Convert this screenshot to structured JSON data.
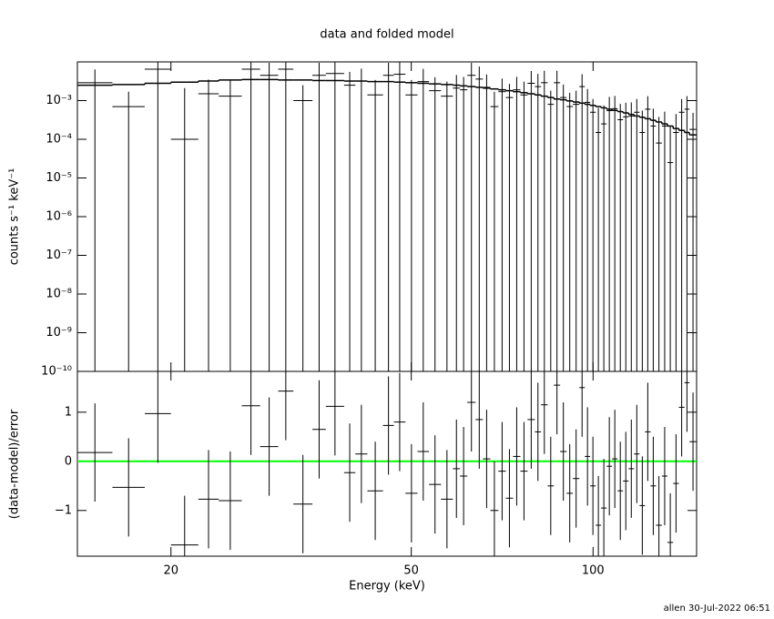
{
  "footer": "allen 30-Jul-2022 06:51",
  "chart_data": [
    {
      "type": "errorbar_step",
      "title": "data and folded model",
      "ylabel": "counts s⁻¹ keV⁻¹",
      "xlog": true,
      "ylog": true,
      "xlim": [
        14,
        148.4
      ],
      "ylim": [
        1e-10,
        0.01
      ],
      "yticks": [
        {
          "value": 1e-10,
          "label": "10⁻¹⁰"
        },
        {
          "value": 1e-09,
          "label": "10⁻⁹"
        },
        {
          "value": 1e-08,
          "label": "10⁻⁸"
        },
        {
          "value": 1e-07,
          "label": "10⁻⁷"
        },
        {
          "value": 1e-06,
          "label": "10⁻⁶"
        },
        {
          "value": 1e-05,
          "label": "10⁻⁵"
        },
        {
          "value": 0.0001,
          "label": "10⁻⁴"
        },
        {
          "value": 0.001,
          "label": "10⁻³"
        }
      ],
      "bins": [
        14,
        16,
        18.1,
        20,
        22.2,
        24,
        26.2,
        28.1,
        30.1,
        31.9,
        34.3,
        36.1,
        38.7,
        40.4,
        42.3,
        44.9,
        46.8,
        48.9,
        51.2,
        53.5,
        56,
        58.6,
        60.2,
        61.9,
        63.9,
        65.7,
        67.6,
        69.7,
        71.7,
        73.7,
        75.8,
        77.9,
        80.1,
        82,
        84.1,
        86.1,
        88.2,
        90.4,
        92.6,
        94.9,
        96.9,
        98.9,
        101,
        103.1,
        105.3,
        107.5,
        109.8,
        112.1,
        114.5,
        116.9,
        119.4,
        121.9,
        124.5,
        127.1,
        130,
        132.8,
        135.7,
        138.7,
        141.7,
        144.4,
        148.4
      ],
      "data": {
        "color": "#000000",
        "values": [
          0.0029,
          0.0007,
          0.0065,
          0.0001,
          0.0015,
          0.0013,
          0.0065,
          0.0045,
          0.0065,
          0.001,
          0.0045,
          0.005,
          0.0025,
          0.0032,
          0.0014,
          0.0045,
          0.0048,
          0.0014,
          0.0031,
          0.0018,
          0.0013,
          0.0021,
          0.0019,
          0.0045,
          0.0036,
          0.0022,
          0.0007,
          0.0017,
          0.0012,
          0.0019,
          0.0014,
          0.0028,
          0.0023,
          0.0029,
          0.0008,
          0.0029,
          0.0012,
          0.0007,
          0.0008,
          0.0023,
          0.0009,
          0.0005,
          0.00015,
          0.00025,
          0.00055,
          0.00062,
          0.00032,
          0.00038,
          0.0004,
          0.0005,
          0.00015,
          0.0006,
          0.00022,
          8e-05,
          0.00022,
          2.5e-05,
          0.00015,
          0.0005,
          0.0006,
          0.00018
        ],
        "errors": [
          0.0035,
          0.001,
          0.007,
          0.002,
          0.002,
          0.002,
          0.007,
          0.005,
          0.007,
          0.0015,
          0.005,
          0.0055,
          0.003,
          0.0035,
          0.002,
          0.005,
          0.005,
          0.002,
          0.0035,
          0.0022,
          0.0018,
          0.0025,
          0.0022,
          0.005,
          0.004,
          0.0025,
          0.001,
          0.002,
          0.0015,
          0.0022,
          0.0017,
          0.003,
          0.0026,
          0.003,
          0.001,
          0.003,
          0.0014,
          0.0009,
          0.001,
          0.0025,
          0.0011,
          0.0006,
          0.0005,
          0.0005,
          0.0007,
          0.0007,
          0.0005,
          0.0005,
          0.0005,
          0.0006,
          0.0004,
          0.0007,
          0.0004,
          0.0003,
          0.0003,
          0.0002,
          0.0003,
          0.0006,
          0.0007,
          0.0003
        ]
      },
      "model": {
        "color": "#000000",
        "values": [
          0.0025,
          0.0026,
          0.0028,
          0.003,
          0.0032,
          0.0034,
          0.0035,
          0.0035,
          0.0034,
          0.0034,
          0.0033,
          0.0033,
          0.0032,
          0.0032,
          0.0031,
          0.0031,
          0.003,
          0.0029,
          0.0028,
          0.0027,
          0.0026,
          0.0025,
          0.0024,
          0.0023,
          0.0022,
          0.0021,
          0.002,
          0.0019,
          0.0018,
          0.0017,
          0.0016,
          0.0015,
          0.0014,
          0.0013,
          0.0012,
          0.0011,
          0.00105,
          0.00098,
          0.00092,
          0.00086,
          0.0008,
          0.00075,
          0.0007,
          0.00065,
          0.0006,
          0.00056,
          0.00052,
          0.00048,
          0.00044,
          0.0004,
          0.00037,
          0.00034,
          0.00031,
          0.00028,
          0.00025,
          0.00022,
          0.00019,
          0.00017,
          0.00015,
          0.00013
        ]
      }
    },
    {
      "type": "residual",
      "ylabel": "(data-model)/error",
      "xlabel": "Energy (keV)",
      "xlog": true,
      "xlim": [
        14,
        148.4
      ],
      "ylim": [
        -1.93,
        1.83
      ],
      "xticks": [
        20,
        50,
        100
      ],
      "yticks": [
        {
          "value": -1,
          "label": "−1"
        },
        0,
        1
      ],
      "zero_line_color": "#00ff00",
      "bins": [
        14,
        16,
        18.1,
        20,
        22.2,
        24,
        26.2,
        28.1,
        30.1,
        31.9,
        34.3,
        36.1,
        38.7,
        40.4,
        42.3,
        44.9,
        46.8,
        48.9,
        51.2,
        53.5,
        56,
        58.6,
        60.2,
        61.9,
        63.9,
        65.7,
        67.6,
        69.7,
        71.7,
        73.7,
        75.8,
        77.9,
        80.1,
        82,
        84.1,
        86.1,
        88.2,
        90.4,
        92.6,
        94.9,
        96.9,
        98.9,
        101,
        103.1,
        105.3,
        107.5,
        109.8,
        112.1,
        114.5,
        116.9,
        119.4,
        121.9,
        124.5,
        127.1,
        130,
        132.8,
        135.7,
        138.7,
        141.7,
        144.4,
        148.4
      ],
      "data": {
        "color": "#000000",
        "values": [
          0.18,
          -0.53,
          0.97,
          -1.7,
          -0.77,
          -0.8,
          1.13,
          0.3,
          1.43,
          -0.87,
          0.65,
          1.12,
          -0.23,
          0.15,
          -0.6,
          0.73,
          0.8,
          -0.65,
          0.2,
          -0.47,
          -0.77,
          -0.15,
          -0.3,
          1.2,
          0.85,
          0.05,
          -1.0,
          -0.2,
          -0.75,
          0.1,
          -0.2,
          0.85,
          0.6,
          1.15,
          -0.5,
          1.55,
          0.2,
          -0.65,
          -0.35,
          1.5,
          0.1,
          -0.5,
          -1.3,
          -0.95,
          -0.1,
          0.05,
          -0.6,
          -0.4,
          -0.15,
          0.15,
          -0.9,
          0.6,
          -0.5,
          -1.3,
          -0.3,
          -1.65,
          -0.45,
          1.1,
          1.6,
          0.4
        ],
        "errors": [
          1,
          1,
          1,
          1,
          1,
          1,
          1,
          1,
          1,
          1,
          1,
          1,
          1,
          1,
          1,
          1,
          1,
          1,
          1,
          1,
          1,
          1,
          1,
          1,
          1,
          1,
          1,
          1,
          1,
          1,
          1,
          1,
          1,
          1,
          1,
          1,
          1,
          1,
          1,
          1,
          1,
          1,
          1,
          1,
          1,
          1,
          1,
          1,
          1,
          1,
          1,
          1,
          1,
          1,
          1,
          1,
          1,
          1,
          1,
          1
        ]
      }
    }
  ]
}
